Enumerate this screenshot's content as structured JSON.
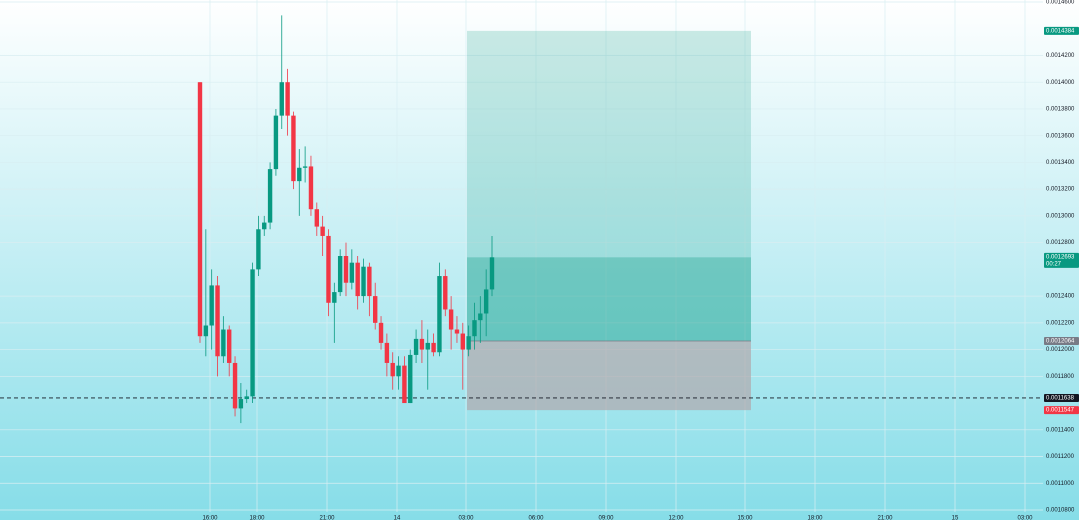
{
  "chart_data": {
    "type": "candlestick",
    "up_color": "#089981",
    "down_color": "#f23645",
    "series": {
      "open": [
        0.0014,
        0.00121,
        0.001218,
        0.001248,
        0.001195,
        0.001215,
        0.00119,
        0.001156,
        0.001163,
        0.001165,
        0.00126,
        0.00129,
        0.001295,
        0.001335,
        0.001375,
        0.0014,
        0.001375,
        0.001326,
        0.001336,
        0.001337,
        0.001305,
        0.001292,
        0.001285,
        0.001235,
        0.001243,
        0.00127,
        0.00125,
        0.001265,
        0.00124,
        0.001262,
        0.00124,
        0.00122,
        0.001205,
        0.00119,
        0.00118,
        0.001188,
        0.00116,
        0.001196,
        0.001208,
        0.0012,
        0.001205,
        0.001198,
        0.001255,
        0.00123,
        0.001215,
        0.001212,
        0.0012,
        0.00121,
        0.001222,
        0.001227,
        0.001245
      ],
      "high": [
        0.0014,
        0.00129,
        0.00126,
        0.001255,
        0.001225,
        0.001218,
        0.001195,
        0.001175,
        0.00117,
        0.001265,
        0.0013,
        0.0013,
        0.00134,
        0.00138,
        0.00145,
        0.00141,
        0.001378,
        0.00135,
        0.001352,
        0.001345,
        0.00131,
        0.0013,
        0.00129,
        0.00125,
        0.001275,
        0.00128,
        0.001275,
        0.00127,
        0.001268,
        0.001265,
        0.00125,
        0.001225,
        0.001212,
        0.001198,
        0.001195,
        0.001195,
        0.0012,
        0.001215,
        0.001222,
        0.001215,
        0.001212,
        0.001265,
        0.00126,
        0.00124,
        0.001225,
        0.00122,
        0.001218,
        0.001235,
        0.00124,
        0.00126,
        0.001285
      ],
      "low": [
        0.001205,
        0.001195,
        0.0012,
        0.00118,
        0.00119,
        0.00118,
        0.00115,
        0.001145,
        0.00116,
        0.00116,
        0.001255,
        0.001285,
        0.00129,
        0.00133,
        0.001365,
        0.00136,
        0.00132,
        0.0013,
        0.001325,
        0.0013,
        0.001285,
        0.00127,
        0.001225,
        0.001205,
        0.00124,
        0.00124,
        0.001245,
        0.00123,
        0.001235,
        0.001225,
        0.001215,
        0.0012,
        0.00118,
        0.00117,
        0.00117,
        0.00116,
        0.00116,
        0.00119,
        0.00119,
        0.00117,
        0.001195,
        0.001195,
        0.001225,
        0.0012,
        0.001205,
        0.00117,
        0.001195,
        0.0012,
        0.001205,
        0.00121,
        0.00124
      ],
      "close": [
        0.00121,
        0.001218,
        0.001248,
        0.001195,
        0.001215,
        0.00119,
        0.001156,
        0.001163,
        0.001165,
        0.00126,
        0.00129,
        0.001295,
        0.001335,
        0.001375,
        0.0014,
        0.001375,
        0.001326,
        0.001336,
        0.001337,
        0.001305,
        0.001292,
        0.001285,
        0.001235,
        0.001243,
        0.00127,
        0.00125,
        0.001265,
        0.00124,
        0.001262,
        0.00124,
        0.00122,
        0.001205,
        0.00119,
        0.00118,
        0.001188,
        0.00116,
        0.001196,
        0.001208,
        0.0012,
        0.001205,
        0.001198,
        0.001255,
        0.00123,
        0.001215,
        0.001212,
        0.0012,
        0.00121,
        0.001222,
        0.001227,
        0.001245,
        0.001269
      ]
    },
    "xtick_labels": [
      "16:00",
      "18:00",
      "21:00",
      "14",
      "03:00",
      "06:00",
      "09:00",
      "12:00",
      "15:00",
      "18:00",
      "21:00",
      "15",
      "03:00"
    ],
    "ylim": [
      0.00108,
      0.00146
    ],
    "yticks": [
      {
        "value": 0.00146,
        "label": "0.0014600"
      },
      {
        "value": 0.00142,
        "label": "0.0014200"
      },
      {
        "value": 0.0014,
        "label": "0.0014000"
      },
      {
        "value": 0.00138,
        "label": "0.0013800"
      },
      {
        "value": 0.00136,
        "label": "0.0013600"
      },
      {
        "value": 0.00134,
        "label": "0.0013400"
      },
      {
        "value": 0.00132,
        "label": "0.0013200"
      },
      {
        "value": 0.0013,
        "label": "0.0013000"
      },
      {
        "value": 0.00128,
        "label": "0.0012800"
      },
      {
        "value": 0.00124,
        "label": "0.0012400"
      },
      {
        "value": 0.00122,
        "label": "0.0012200"
      },
      {
        "value": 0.0012,
        "label": "0.0012000"
      },
      {
        "value": 0.00118,
        "label": "0.0011800"
      },
      {
        "value": 0.00114,
        "label": "0.0011400"
      },
      {
        "value": 0.00112,
        "label": "0.0011200"
      },
      {
        "value": 0.0011,
        "label": "0.0011000"
      },
      {
        "value": 0.00108,
        "label": "0.0010800"
      }
    ],
    "grid": true,
    "position": {
      "target": 0.0014384,
      "entry": 0.0012064,
      "stop": 0.0011547
    },
    "price_line": 0.0011638,
    "price_labels": [
      {
        "value": 0.0014384,
        "label": "0.0014384",
        "color": "#089981"
      },
      {
        "value": 0.0012693,
        "label": "0.0012693",
        "color": "#089981",
        "sub": "00:27"
      },
      {
        "value": 0.0012064,
        "label": "0.0012064",
        "color": "#787b86"
      },
      {
        "value": 0.0011638,
        "label": "0.0011638",
        "color": "#131722"
      },
      {
        "value": 0.0011547,
        "label": "0.0011547",
        "color": "#f23645"
      }
    ]
  }
}
